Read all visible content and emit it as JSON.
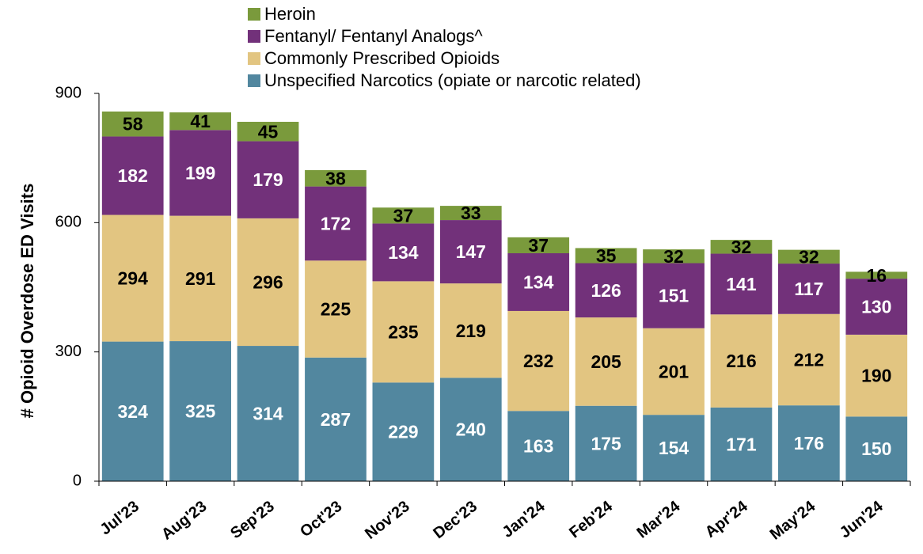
{
  "chart_data": {
    "type": "stacked_bar",
    "y_label": "# Opioid Overdose ED Visits",
    "categories": [
      "Jul'23",
      "Aug'23",
      "Sep'23",
      "Oct'23",
      "Nov'23",
      "Dec'23",
      "Jan'24",
      "Feb'24",
      "Mar'24",
      "Apr'24",
      "May'24",
      "Jun'24"
    ],
    "series": [
      {
        "name": "Unspecified Narcotics (opiate or narcotic related)",
        "color": "#52879f",
        "label_color": "#ffffff",
        "values": [
          324,
          325,
          314,
          287,
          229,
          240,
          163,
          175,
          154,
          171,
          176,
          150
        ]
      },
      {
        "name": "Commonly Prescribed Opioids",
        "color": "#e2c581",
        "label_color": "#000000",
        "values": [
          294,
          291,
          296,
          225,
          235,
          219,
          232,
          205,
          201,
          216,
          212,
          190
        ]
      },
      {
        "name": "Fentanyl/ Fentanyl Analogs^",
        "color": "#72317a",
        "label_color": "#ffffff",
        "values": [
          182,
          199,
          179,
          172,
          134,
          147,
          134,
          126,
          151,
          141,
          117,
          130
        ]
      },
      {
        "name": "Heroin",
        "color": "#7a9a3c",
        "label_color": "#000000",
        "values": [
          58,
          41,
          45,
          38,
          37,
          33,
          37,
          35,
          32,
          32,
          32,
          16
        ]
      }
    ],
    "ylim": [
      0,
      900
    ],
    "yticks": [
      0,
      300,
      600,
      900
    ]
  }
}
